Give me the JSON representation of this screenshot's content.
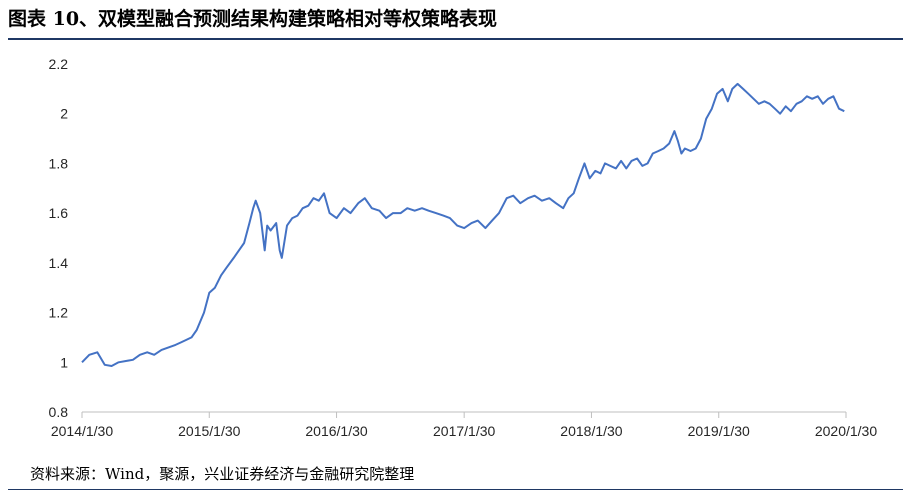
{
  "title": "图表 10、双模型融合预测结果构建策略相对等权策略表现",
  "source": "资料来源：Wind，聚源，兴业证券经济与金融研究院整理",
  "colors": {
    "line": "#4472C4",
    "axis": "#BFBFBF",
    "rule": "#1F3864"
  },
  "chart_data": {
    "type": "line",
    "title": "",
    "xlabel": "",
    "ylabel": "",
    "ylim": [
      0.8,
      2.2
    ],
    "yticks": [
      0.8,
      1,
      1.2,
      1.4,
      1.6,
      1.8,
      2,
      2.2
    ],
    "ytick_labels": [
      "0.8",
      "1",
      "1.2",
      "1.4",
      "1.6",
      "1.8",
      "2",
      "2.2"
    ],
    "xlim": [
      "2014-01-30",
      "2020-01-30"
    ],
    "xticks": [
      "2014-01-30",
      "2015-01-30",
      "2016-01-30",
      "2017-01-30",
      "2018-01-30",
      "2019-01-30",
      "2020-01-30"
    ],
    "xtick_labels": [
      "2014/1/30",
      "2015/1/30",
      "2016/1/30",
      "2017/1/30",
      "2018/1/30",
      "2019/1/30",
      "2020/1/30"
    ],
    "grid": false,
    "legend": "none",
    "series": [
      {
        "x": [
          "2014-01-30",
          "2014-02-20",
          "2014-03-15",
          "2014-04-05",
          "2014-04-25",
          "2014-05-15",
          "2014-06-05",
          "2014-06-25",
          "2014-07-15",
          "2014-08-05",
          "2014-08-25",
          "2014-09-15",
          "2014-10-05",
          "2014-10-25",
          "2014-11-10",
          "2014-11-25",
          "2014-12-10",
          "2014-12-25",
          "2015-01-15",
          "2015-01-30",
          "2015-02-15",
          "2015-03-05",
          "2015-03-20",
          "2015-04-10",
          "2015-04-25",
          "2015-05-10",
          "2015-05-25",
          "2015-06-05",
          "2015-06-12",
          "2015-06-25",
          "2015-07-08",
          "2015-07-15",
          "2015-07-25",
          "2015-08-10",
          "2015-08-20",
          "2015-08-26",
          "2015-09-10",
          "2015-09-25",
          "2015-10-10",
          "2015-10-25",
          "2015-11-10",
          "2015-11-25",
          "2015-12-10",
          "2015-12-25",
          "2016-01-10",
          "2016-01-30",
          "2016-02-20",
          "2016-03-10",
          "2016-04-01",
          "2016-04-20",
          "2016-05-10",
          "2016-06-01",
          "2016-06-20",
          "2016-07-10",
          "2016-08-01",
          "2016-08-20",
          "2016-09-10",
          "2016-10-01",
          "2016-10-20",
          "2016-11-10",
          "2016-12-01",
          "2016-12-20",
          "2017-01-10",
          "2017-01-30",
          "2017-02-20",
          "2017-03-10",
          "2017-04-01",
          "2017-04-20",
          "2017-05-10",
          "2017-06-01",
          "2017-06-20",
          "2017-07-10",
          "2017-08-01",
          "2017-08-20",
          "2017-09-10",
          "2017-10-01",
          "2017-10-20",
          "2017-11-10",
          "2017-11-25",
          "2017-12-10",
          "2017-12-25",
          "2018-01-10",
          "2018-01-25",
          "2018-02-10",
          "2018-02-25",
          "2018-03-10",
          "2018-03-25",
          "2018-04-10",
          "2018-04-25",
          "2018-05-10",
          "2018-05-25",
          "2018-06-10",
          "2018-06-25",
          "2018-07-10",
          "2018-07-25",
          "2018-08-10",
          "2018-08-25",
          "2018-09-10",
          "2018-09-25",
          "2018-10-05",
          "2018-10-15",
          "2018-10-25",
          "2018-11-10",
          "2018-11-25",
          "2018-12-10",
          "2018-12-25",
          "2019-01-10",
          "2019-01-25",
          "2019-02-10",
          "2019-02-25",
          "2019-03-10",
          "2019-03-25",
          "2019-04-10",
          "2019-04-25",
          "2019-05-10",
          "2019-05-25",
          "2019-06-10",
          "2019-06-25",
          "2019-07-10",
          "2019-07-25",
          "2019-08-10",
          "2019-08-25",
          "2019-09-10",
          "2019-09-25",
          "2019-10-10",
          "2019-10-25",
          "2019-11-10",
          "2019-11-25",
          "2019-12-10",
          "2019-12-25",
          "2020-01-10",
          "2020-01-25"
        ],
        "values": [
          1.0,
          1.03,
          1.04,
          0.99,
          0.985,
          1.0,
          1.005,
          1.01,
          1.03,
          1.04,
          1.03,
          1.05,
          1.06,
          1.07,
          1.08,
          1.09,
          1.1,
          1.13,
          1.2,
          1.28,
          1.3,
          1.35,
          1.38,
          1.42,
          1.45,
          1.48,
          1.56,
          1.62,
          1.65,
          1.6,
          1.45,
          1.55,
          1.53,
          1.56,
          1.45,
          1.42,
          1.55,
          1.58,
          1.59,
          1.62,
          1.63,
          1.66,
          1.65,
          1.68,
          1.6,
          1.58,
          1.62,
          1.6,
          1.64,
          1.66,
          1.62,
          1.61,
          1.58,
          1.6,
          1.6,
          1.62,
          1.61,
          1.62,
          1.61,
          1.6,
          1.59,
          1.58,
          1.55,
          1.54,
          1.56,
          1.57,
          1.54,
          1.57,
          1.6,
          1.66,
          1.67,
          1.64,
          1.66,
          1.67,
          1.65,
          1.66,
          1.64,
          1.62,
          1.66,
          1.68,
          1.74,
          1.8,
          1.74,
          1.77,
          1.76,
          1.8,
          1.79,
          1.78,
          1.81,
          1.78,
          1.81,
          1.82,
          1.79,
          1.8,
          1.84,
          1.85,
          1.86,
          1.88,
          1.93,
          1.89,
          1.84,
          1.86,
          1.85,
          1.86,
          1.9,
          1.98,
          2.02,
          2.08,
          2.1,
          2.05,
          2.1,
          2.12,
          2.1,
          2.08,
          2.06,
          2.04,
          2.05,
          2.04,
          2.02,
          2.0,
          2.03,
          2.01,
          2.04,
          2.05,
          2.07,
          2.06,
          2.07,
          2.04,
          2.06,
          2.07,
          2.02,
          2.01
        ]
      }
    ]
  }
}
